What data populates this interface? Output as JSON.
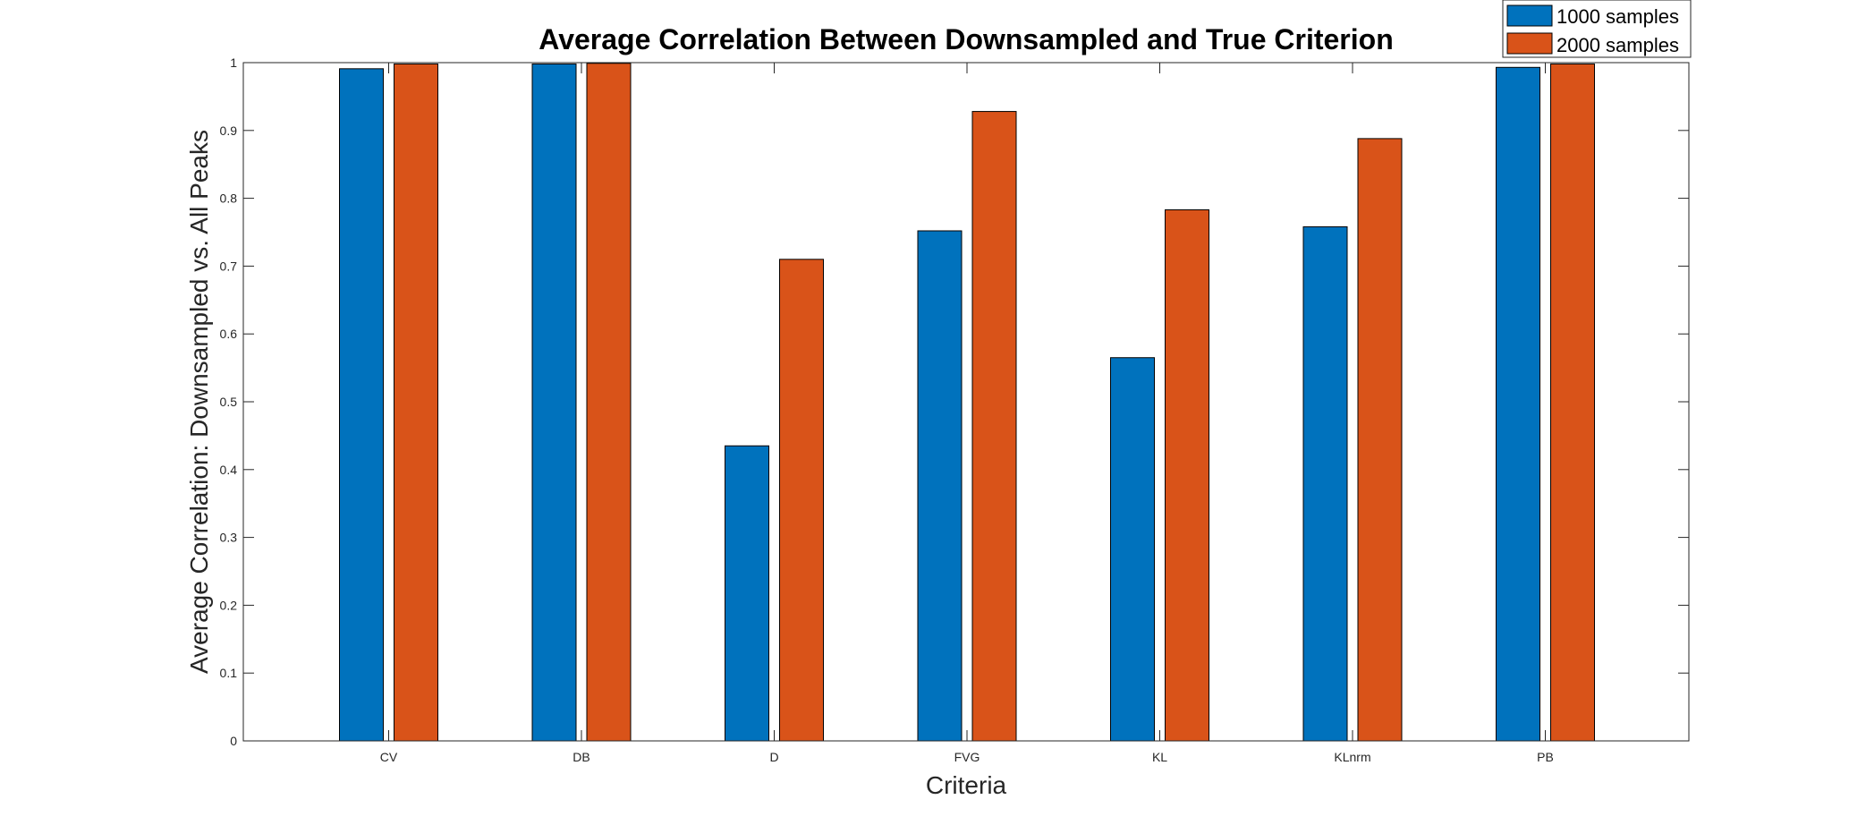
{
  "chart_data": {
    "type": "bar",
    "title": "Average Correlation Between Downsampled and True Criterion",
    "xlabel": "Criteria",
    "ylabel": "Average Correlation: Downsampled vs. All Peaks",
    "categories": [
      "CV",
      "DB",
      "D",
      "FVG",
      "KL",
      "KLnrm",
      "PB"
    ],
    "ylim": [
      0,
      1
    ],
    "yticks": [
      0,
      0.1,
      0.2,
      0.3,
      0.4,
      0.5,
      0.6,
      0.7,
      0.8,
      0.9,
      1
    ],
    "ytick_labels": [
      "0",
      "0.1",
      "0.2",
      "0.3",
      "0.4",
      "0.5",
      "0.6",
      "0.7",
      "0.8",
      "0.9",
      "1"
    ],
    "series": [
      {
        "name": "1000 samples",
        "color": "#0072BD",
        "values": [
          0.991,
          0.998,
          0.435,
          0.752,
          0.565,
          0.758,
          0.993
        ]
      },
      {
        "name": "2000 samples",
        "color": "#D95319",
        "values": [
          0.998,
          0.999,
          0.71,
          0.928,
          0.783,
          0.888,
          0.998
        ]
      }
    ],
    "grid": false,
    "legend_position": "top-right"
  }
}
